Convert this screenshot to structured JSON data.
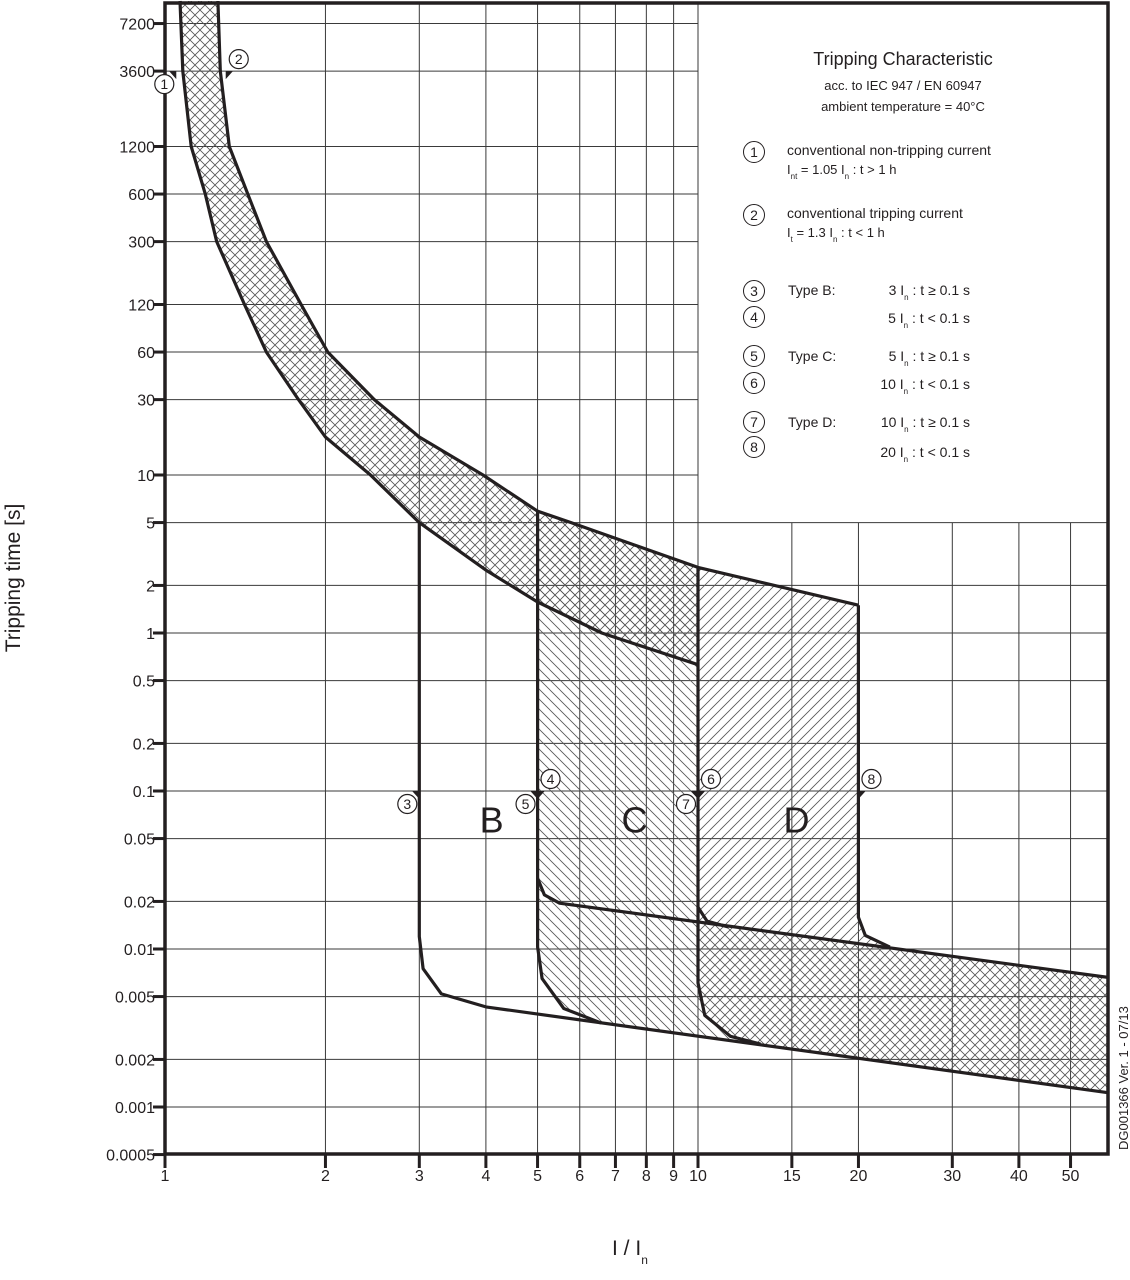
{
  "chart_data": {
    "type": "line",
    "title": "Tripping Characteristic",
    "subtitle": [
      "acc. to IEC 947 / EN 60947",
      "ambient temperature = 40°C"
    ],
    "xlabel": {
      "main": "I / I",
      "sub": "n"
    },
    "ylabel": "Tripping time [s]",
    "xscale": "log",
    "yscale": "log",
    "xlim": [
      1,
      59
    ],
    "ylim": [
      0.0005,
      10000
    ],
    "grid": true,
    "x_ticks": [
      1,
      2,
      3,
      4,
      5,
      6,
      7,
      8,
      9,
      10,
      15,
      20,
      30,
      40,
      50
    ],
    "x_tick_labels": [
      "1",
      "2",
      "3",
      "4",
      "5",
      "6",
      "7",
      "8",
      "9",
      "10",
      "15",
      "20",
      "30",
      "40",
      "50"
    ],
    "y_ticks": [
      7200,
      3600,
      1200,
      600,
      300,
      120,
      60,
      30,
      10,
      5,
      2,
      1,
      0.5,
      0.2,
      0.1,
      0.05,
      0.02,
      0.01,
      0.005,
      0.002,
      0.001,
      0.0005
    ],
    "y_tick_labels": [
      "7200",
      "3600",
      "1200",
      "600",
      "300",
      "120",
      "60",
      "30",
      "10",
      "5",
      "2",
      "1",
      "0.5",
      "0.2",
      "0.1",
      "0.05",
      "0.02",
      "0.01",
      "0.005",
      "0.002",
      "0.001",
      "0.0005"
    ],
    "series": [
      {
        "id": "thermal-upper",
        "points": [
          [
            1.257,
            10000
          ],
          [
            1.27,
            3600
          ],
          [
            1.32,
            1200
          ],
          [
            1.43,
            600
          ],
          [
            1.55,
            300
          ],
          [
            1.8,
            120
          ],
          [
            2.02,
            60
          ],
          [
            2.47,
            30
          ],
          [
            3,
            17.4
          ],
          [
            3.95,
            10
          ],
          [
            5,
            5.9
          ],
          [
            5.78,
            5
          ],
          [
            10,
            2.6
          ],
          [
            20,
            1.5
          ]
        ]
      },
      {
        "id": "thermal-lower",
        "points": [
          [
            1.067,
            10000
          ],
          [
            1.08,
            3600
          ],
          [
            1.12,
            1200
          ],
          [
            1.19,
            600
          ],
          [
            1.25,
            300
          ],
          [
            1.41,
            120
          ],
          [
            1.55,
            60
          ],
          [
            1.78,
            30
          ],
          [
            2,
            17.4
          ],
          [
            2.43,
            10
          ],
          [
            3,
            5
          ],
          [
            4,
            2.5
          ],
          [
            5,
            1.57
          ],
          [
            6.6,
            1
          ],
          [
            10,
            0.63
          ]
        ]
      },
      {
        "id": "type-b",
        "points": [
          [
            3,
            5
          ],
          [
            3,
            0.012
          ],
          [
            3.05,
            0.0075
          ],
          [
            3.3,
            0.0052
          ],
          [
            4,
            0.0043
          ],
          [
            59,
            0.00123
          ]
        ]
      },
      {
        "id": "type-c-lower",
        "points": [
          [
            5,
            5.9
          ],
          [
            5,
            0.0103
          ],
          [
            5.1,
            0.0065
          ],
          [
            5.6,
            0.0042
          ],
          [
            6.58,
            0.0034
          ]
        ]
      },
      {
        "id": "type-c-upper",
        "points": [
          [
            5,
            0.028
          ],
          [
            5.15,
            0.022
          ],
          [
            5.5,
            0.0195
          ],
          [
            59,
            0.0066
          ]
        ]
      },
      {
        "id": "type-d-lower",
        "points": [
          [
            10,
            2.6
          ],
          [
            10,
            0.0061
          ],
          [
            10.3,
            0.0038
          ],
          [
            11.5,
            0.0028
          ],
          [
            13.1,
            0.0025
          ]
        ]
      },
      {
        "id": "type-d-upper",
        "points": [
          [
            10,
            0.0184
          ],
          [
            10.4,
            0.015
          ],
          [
            11.4,
            0.0138
          ]
        ]
      },
      {
        "id": "type-d-right",
        "points": [
          [
            20,
            1.5
          ],
          [
            20,
            0.0159
          ],
          [
            20.6,
            0.0122
          ],
          [
            22.9,
            0.0103
          ]
        ]
      }
    ],
    "regions": [
      {
        "id": "thermal-band",
        "hatch": "cross"
      },
      {
        "id": "type-c",
        "hatch": "backslash"
      },
      {
        "id": "type-d",
        "hatch": "slash"
      }
    ],
    "region_labels": [
      {
        "text": "B",
        "x": 4.1,
        "y": 0.065
      },
      {
        "text": "C",
        "x": 7.6,
        "y": 0.065
      },
      {
        "text": "D",
        "x": 15.3,
        "y": 0.065
      }
    ],
    "markers": [
      {
        "label": "1",
        "x": 1.05,
        "y": 3600,
        "side": "left"
      },
      {
        "label": "2",
        "x": 1.3,
        "y": 3600,
        "side": "right"
      },
      {
        "label": "3",
        "x": 3,
        "y": 0.1,
        "side": "left"
      },
      {
        "label": "4",
        "x": 5,
        "y": 0.1,
        "side": "right"
      },
      {
        "label": "5",
        "x": 5,
        "y": 0.1,
        "side": "left"
      },
      {
        "label": "6",
        "x": 10,
        "y": 0.1,
        "side": "right"
      },
      {
        "label": "7",
        "x": 10,
        "y": 0.1,
        "side": "left"
      },
      {
        "label": "8",
        "x": 20,
        "y": 0.1,
        "side": "right"
      }
    ],
    "annotation_right": "DG001366 Ver. 1 - 07/13",
    "colors": {
      "line": "#231f20",
      "grid": "#3a3a3a",
      "hatch": "#555555"
    }
  },
  "legend": {
    "items": [
      {
        "num": "1",
        "text": "conventional non-tripping current",
        "formula": [
          [
            "I",
            "nt"
          ],
          [
            " = 1.05 I",
            "n"
          ],
          [
            " :  t > 1 h",
            ""
          ]
        ]
      },
      {
        "num": "2",
        "text": "conventional tripping current",
        "formula": [
          [
            "I",
            "t"
          ],
          [
            " = 1.3 I",
            "n"
          ],
          [
            " :  t < 1 h",
            ""
          ]
        ]
      }
    ],
    "types": [
      {
        "num": "3",
        "type": "Type B:",
        "formula": [
          [
            "3 I",
            "n"
          ],
          [
            " : t ≥ 0.1 s",
            ""
          ]
        ]
      },
      {
        "num": "4",
        "type": "",
        "formula": [
          [
            "5 I",
            "n"
          ],
          [
            " : t < 0.1 s",
            ""
          ]
        ]
      },
      {
        "num": "5",
        "type": "Type C:",
        "formula": [
          [
            "5 I",
            "n"
          ],
          [
            " : t ≥ 0.1 s",
            ""
          ]
        ]
      },
      {
        "num": "6",
        "type": "",
        "formula": [
          [
            "10 I",
            "n"
          ],
          [
            " : t < 0.1 s",
            ""
          ]
        ]
      },
      {
        "num": "7",
        "type": "Type D:",
        "formula": [
          [
            "10 I",
            "n"
          ],
          [
            " : t ≥ 0.1 s",
            ""
          ]
        ]
      },
      {
        "num": "8",
        "type": "",
        "formula": [
          [
            "20 I",
            "n"
          ],
          [
            " : t < 0.1 s",
            ""
          ]
        ]
      }
    ]
  }
}
